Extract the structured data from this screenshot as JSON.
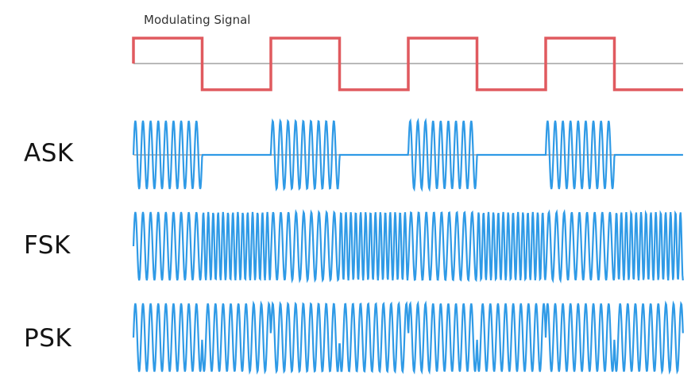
{
  "title": "Modulating Signal",
  "rows": [
    {
      "key": "ask",
      "label": "ASK"
    },
    {
      "key": "fsk",
      "label": "FSK"
    },
    {
      "key": "psk",
      "label": "PSK"
    }
  ],
  "bits": [
    1,
    0,
    1,
    0,
    1,
    0,
    1,
    0
  ],
  "colors": {
    "modulating": "#e05a5f",
    "carrier": "#2f9ae6",
    "baseline": "#b9b9b9",
    "label": "#141414"
  }
}
